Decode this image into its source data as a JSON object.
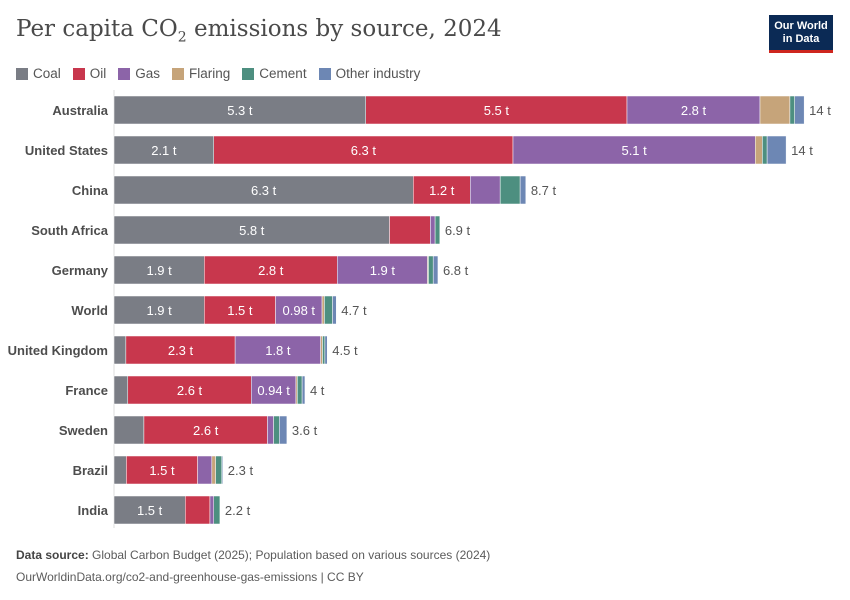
{
  "title_main": "Per capita CO",
  "title_sub": "2",
  "title_rest": " emissions by source, 2024",
  "logo": {
    "line1": "Our World",
    "line2": "in Data"
  },
  "footer": {
    "source_label": "Data source:",
    "source_text": " Global Carbon Budget (2025); Population based on various sources (2024)",
    "url": "OurWorldinData.org/co2-and-greenhouse-gas-emissions | CC BY"
  },
  "chart_data": {
    "type": "bar",
    "orientation": "horizontal",
    "stacked": true,
    "title": "Per capita CO₂ emissions by source, 2024",
    "unit": "t",
    "legend_position": "top-left",
    "grid": false,
    "categories": [
      "Australia",
      "United States",
      "China",
      "South Africa",
      "Germany",
      "World",
      "United Kingdom",
      "France",
      "Sweden",
      "Brazil",
      "India"
    ],
    "totals_labels": [
      "14 t",
      "14 t",
      "8.7 t",
      "6.9 t",
      "6.8 t",
      "4.7 t",
      "4.5 t",
      "4 t",
      "3.6 t",
      "2.3 t",
      "2.2 t"
    ],
    "series": [
      {
        "name": "Coal",
        "color": "#7a7d85",
        "values": [
          5.3,
          2.1,
          6.3,
          5.8,
          1.9,
          1.9,
          0.25,
          0.29,
          0.63,
          0.26,
          1.5
        ],
        "labels": [
          "5.3 t",
          "2.1 t",
          "6.3 t",
          "5.8 t",
          "1.9 t",
          "1.9 t",
          "",
          "",
          "",
          "",
          "1.5 t"
        ]
      },
      {
        "name": "Oil",
        "color": "#c8374d",
        "values": [
          5.5,
          6.3,
          1.2,
          0.86,
          2.8,
          1.5,
          2.3,
          2.6,
          2.6,
          1.5,
          0.52
        ],
        "labels": [
          "5.5 t",
          "6.3 t",
          "1.2 t",
          "",
          "2.8 t",
          "1.5 t",
          "2.3 t",
          "2.6 t",
          "2.6 t",
          "1.5 t",
          ""
        ]
      },
      {
        "name": "Gas",
        "color": "#8c64a8",
        "values": [
          2.8,
          5.1,
          0.63,
          0.1,
          1.9,
          0.98,
          1.8,
          0.94,
          0.13,
          0.3,
          0.08
        ],
        "labels": [
          "2.8 t",
          "5.1 t",
          "",
          "",
          "1.9 t",
          "0.98 t",
          "1.8 t",
          "0.94 t",
          "",
          "",
          ""
        ]
      },
      {
        "name": "Flaring",
        "color": "#c6a47a",
        "values": [
          0.63,
          0.15,
          0,
          0,
          0.02,
          0.05,
          0.04,
          0.03,
          0,
          0.08,
          0
        ]
      },
      {
        "name": "Cement",
        "color": "#4d8f80",
        "values": [
          0.1,
          0.1,
          0.42,
          0.1,
          0.1,
          0.17,
          0.05,
          0.1,
          0.12,
          0.13,
          0.13
        ]
      },
      {
        "name": "Other industry",
        "color": "#6d87b4",
        "values": [
          0.2,
          0.4,
          0.12,
          0,
          0.1,
          0.08,
          0.05,
          0.06,
          0.16,
          0.02,
          0
        ]
      }
    ]
  }
}
